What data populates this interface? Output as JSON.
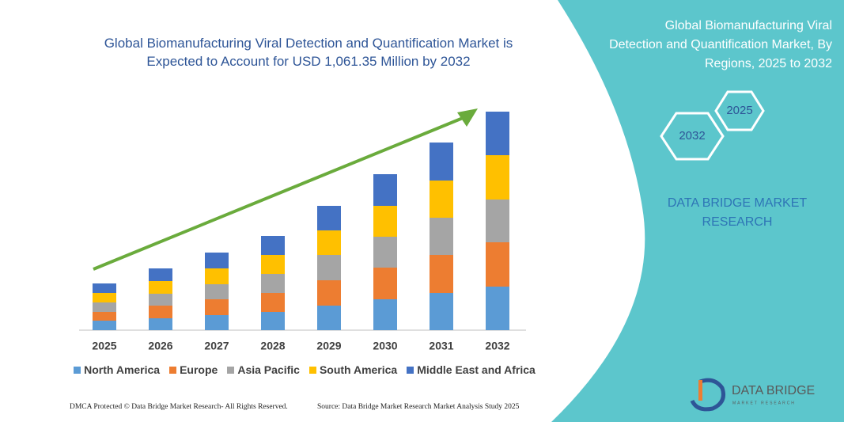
{
  "chart_data": {
    "type": "bar",
    "stacked": true,
    "title": "Global Biomanufacturing Viral Detection and Quantification Market is Expected to Account for USD 1,061.35 Million by 2032",
    "categories": [
      "2025",
      "2026",
      "2027",
      "2028",
      "2029",
      "2030",
      "2031",
      "2032"
    ],
    "series": [
      {
        "name": "North America",
        "color": "#5b9bd5",
        "values": [
          12,
          15,
          19,
          23,
          31,
          39,
          47,
          55
        ]
      },
      {
        "name": "Europe",
        "color": "#ed7d31",
        "values": [
          11,
          16,
          20,
          24,
          32,
          40,
          48,
          56
        ]
      },
      {
        "name": "Asia Pacific",
        "color": "#a5a5a5",
        "values": [
          12,
          15,
          19,
          24,
          32,
          39,
          47,
          54
        ]
      },
      {
        "name": "South America",
        "color": "#ffc000",
        "values": [
          12,
          16,
          20,
          24,
          31,
          39,
          47,
          56
        ]
      },
      {
        "name": "Middle East and Africa",
        "color": "#4472c4",
        "values": [
          12,
          16,
          20,
          24,
          31,
          40,
          48,
          55
        ]
      }
    ],
    "legend": "bottom"
  },
  "panel": {
    "title": "Global Biomanufacturing Viral Detection and Quantification Market, By Regions, 2025 to 2032",
    "hexagons": [
      "2025",
      "2032"
    ],
    "brand": "DATA BRIDGE MARKET RESEARCH"
  },
  "footer": {
    "left": "DMCA Protected © Data Bridge Market Research- All Rights Reserved.",
    "right": "Source: Data Bridge Market Research Market Analysis Study 2025"
  },
  "logo": {
    "name": "DATA BRIDGE",
    "tagline": "MARKET RESEARCH"
  }
}
